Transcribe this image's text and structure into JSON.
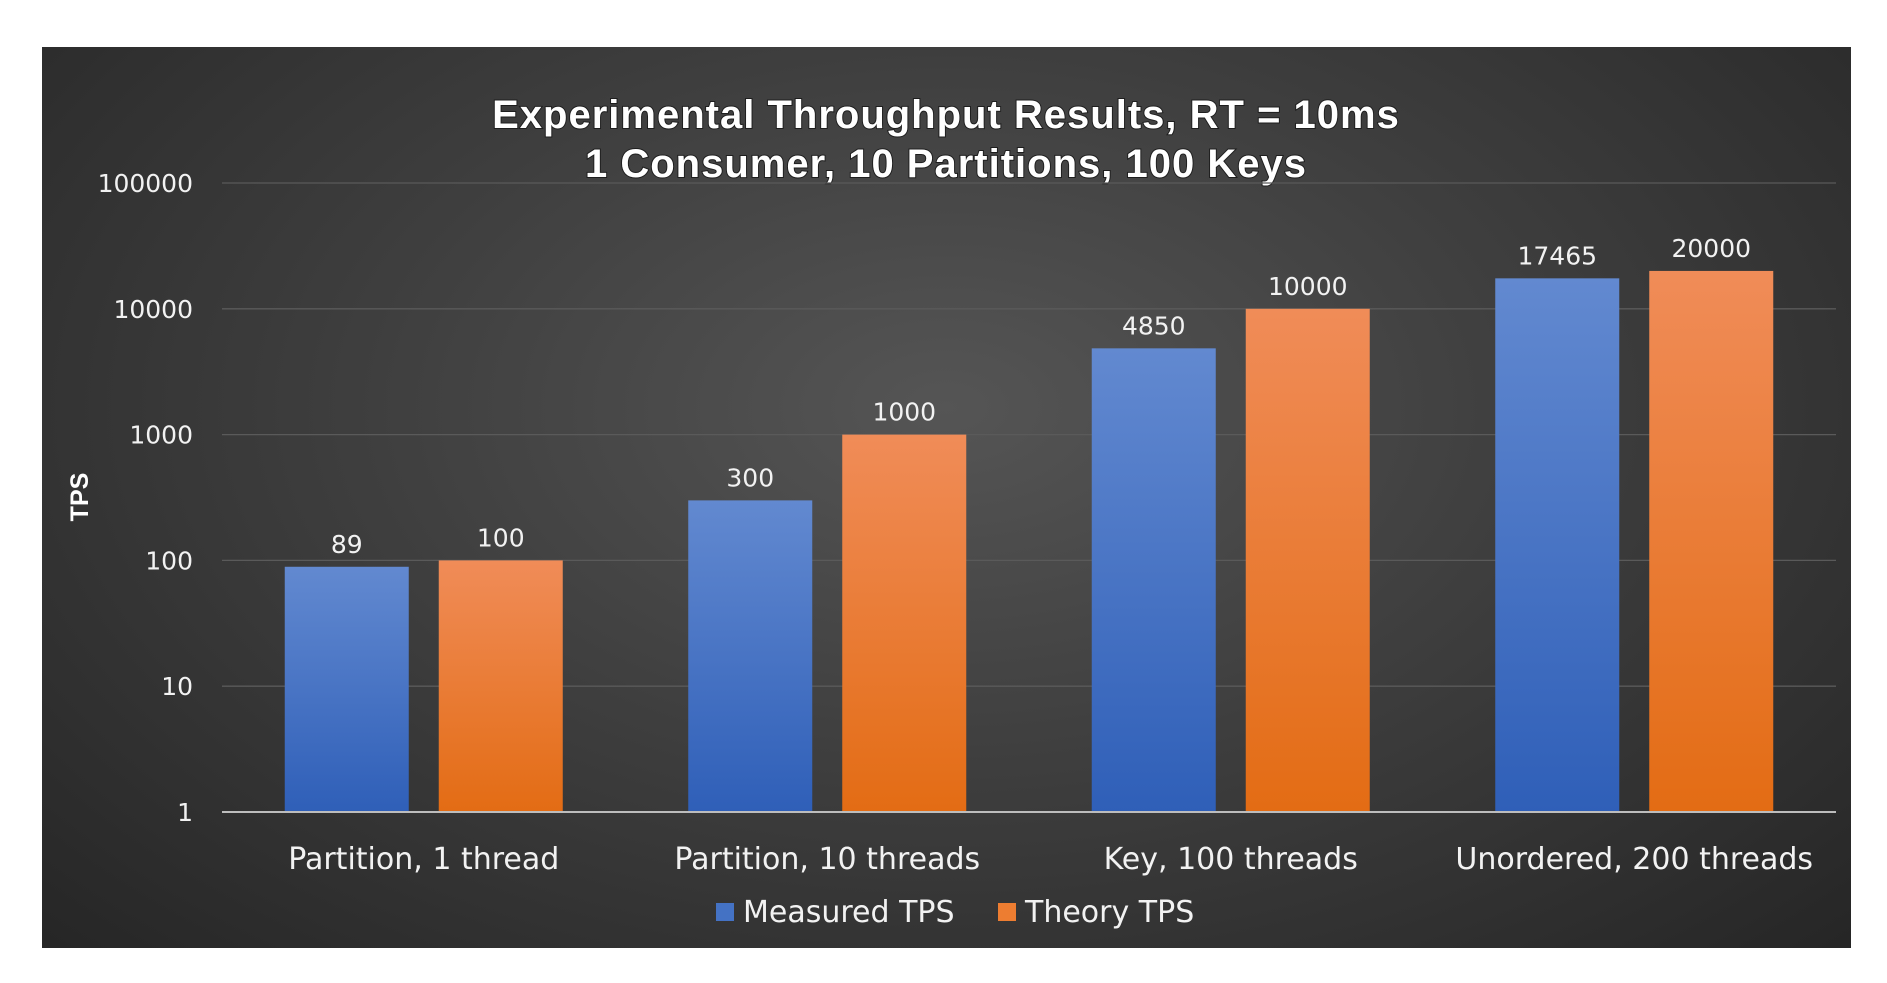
{
  "chart_data": {
    "type": "bar",
    "title": "Experimental Throughput Results, RT = 10ms",
    "subtitle": "1 Consumer, 10 Partitions, 100 Keys",
    "ylabel": "TPS",
    "xlabel": "",
    "yscale": "log",
    "ylim": [
      1,
      100000
    ],
    "yticks": [
      "1",
      "10",
      "100",
      "1000",
      "10000",
      "100000"
    ],
    "ytick_values": [
      1,
      10,
      100,
      1000,
      10000,
      100000
    ],
    "grid": true,
    "legend_position": "bottom",
    "categories": [
      "Partition, 1 thread",
      "Partition, 10 threads",
      "Key, 100 threads",
      "Unordered, 200 threads"
    ],
    "series": [
      {
        "name": "Measured TPS",
        "values": [
          89,
          300,
          4850,
          17465
        ],
        "labels": [
          "89",
          "300",
          "4850",
          "17465"
        ],
        "color": "#4472c4"
      },
      {
        "name": "Theory TPS",
        "values": [
          100,
          1000,
          10000,
          20000
        ],
        "labels": [
          "100",
          "1000",
          "10000",
          "20000"
        ],
        "color": "#ed7d31"
      }
    ]
  }
}
